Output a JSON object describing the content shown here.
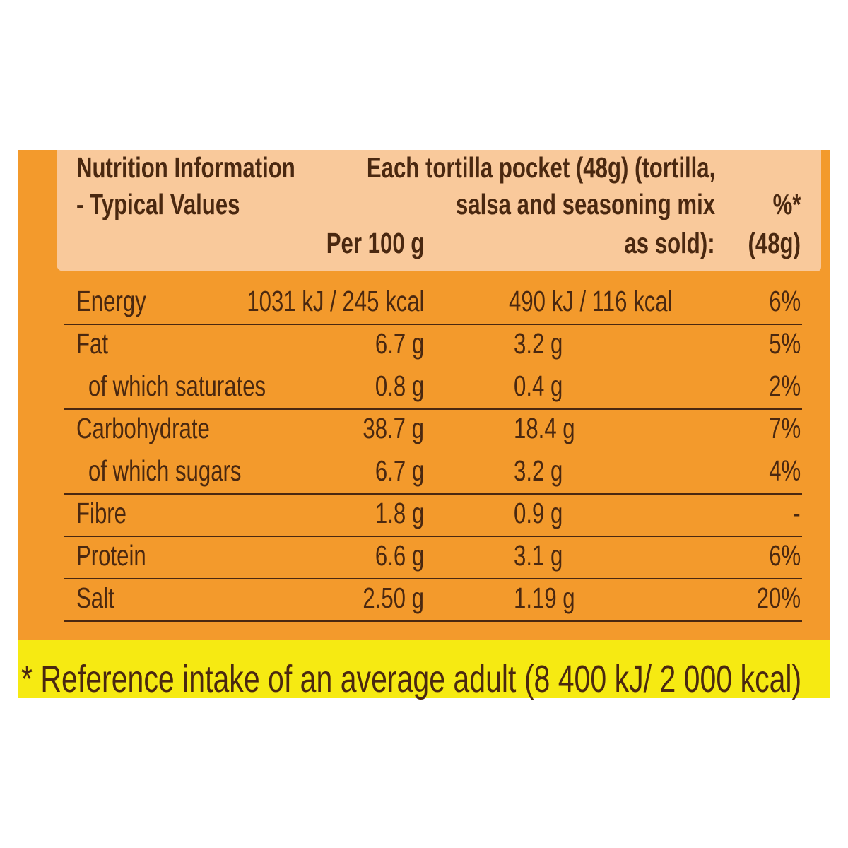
{
  "header": {
    "title_lines": [
      "Nutrition Information",
      "- Typical Values"
    ],
    "col_per100": "Per 100 g",
    "col_pocket_lines": [
      "Each tortilla pocket (48g) (tortilla,",
      "salsa and seasoning mix",
      "as sold):"
    ],
    "col_pct_lines": [
      "%*",
      "(48g)"
    ]
  },
  "table": {
    "rows": [
      [
        "Energy",
        "1031 kJ / 245 kcal",
        "490 kJ / 116 kcal",
        "6%"
      ],
      [
        "Fat",
        "6.7 g",
        "3.2 g",
        "5%"
      ],
      [
        "of which saturates",
        "0.8 g",
        "0.4 g",
        "2%"
      ],
      [
        "Carbohydrate",
        "38.7 g",
        "18.4 g",
        "7%"
      ],
      [
        "of which sugars",
        "6.7 g",
        "3.2 g",
        "4%"
      ],
      [
        "Fibre",
        "1.8 g",
        "0.9 g",
        "-"
      ],
      [
        "Protein",
        "6.6 g",
        "3.1 g",
        "6%"
      ],
      [
        "Salt",
        "2.50 g",
        "1.19 g",
        "20%"
      ]
    ]
  },
  "footnote": "* Reference intake of an average adult (8 400 kJ/ 2 000 kcal)"
}
